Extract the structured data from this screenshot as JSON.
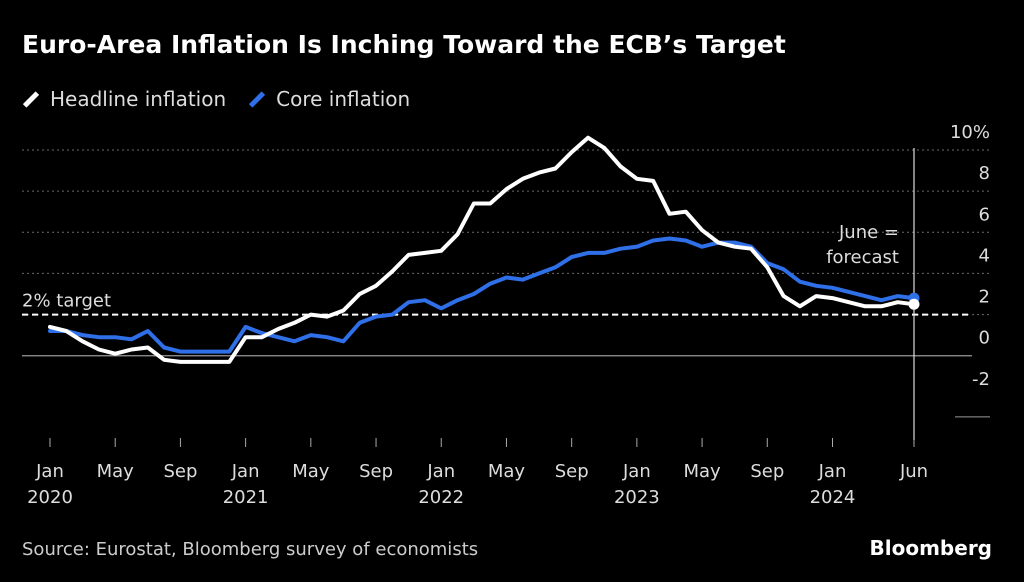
{
  "title": "Euro-Area Inflation Is Inching Toward the ECB’s Target",
  "legend": [
    {
      "label": "Headline inflation",
      "color": "#ffffff"
    },
    {
      "label": "Core inflation",
      "color": "#2f6fe8"
    }
  ],
  "source": "Source: Eurostat, Bloomberg survey of economists",
  "brand": "Bloomberg",
  "chart_data": {
    "type": "line",
    "title": "Euro-Area Inflation Is Inching Toward the ECB’s Target",
    "ylim": [
      -4,
      10
    ],
    "yticks": [
      {
        "value": 10,
        "label": "10%"
      },
      {
        "value": 8,
        "label": "8"
      },
      {
        "value": 6,
        "label": "6"
      },
      {
        "value": 4,
        "label": "4"
      },
      {
        "value": 2,
        "label": "2"
      },
      {
        "value": 0,
        "label": "0"
      },
      {
        "value": -2,
        "label": "-2"
      }
    ],
    "xticks": [
      {
        "month": "2020-01",
        "line1": "Jan",
        "line2": "2020"
      },
      {
        "month": "2020-05",
        "line1": "May",
        "line2": ""
      },
      {
        "month": "2020-09",
        "line1": "Sep",
        "line2": ""
      },
      {
        "month": "2021-01",
        "line1": "Jan",
        "line2": "2021"
      },
      {
        "month": "2021-05",
        "line1": "May",
        "line2": ""
      },
      {
        "month": "2021-09",
        "line1": "Sep",
        "line2": ""
      },
      {
        "month": "2022-01",
        "line1": "Jan",
        "line2": "2022"
      },
      {
        "month": "2022-05",
        "line1": "May",
        "line2": ""
      },
      {
        "month": "2022-09",
        "line1": "Sep",
        "line2": ""
      },
      {
        "month": "2023-01",
        "line1": "Jan",
        "line2": "2023"
      },
      {
        "month": "2023-05",
        "line1": "May",
        "line2": ""
      },
      {
        "month": "2023-09",
        "line1": "Sep",
        "line2": ""
      },
      {
        "month": "2024-01",
        "line1": "Jan",
        "line2": "2024"
      },
      {
        "month": "2024-06",
        "line1": "Jun",
        "line2": ""
      }
    ],
    "x": [
      "2020-01",
      "2020-02",
      "2020-03",
      "2020-04",
      "2020-05",
      "2020-06",
      "2020-07",
      "2020-08",
      "2020-09",
      "2020-10",
      "2020-11",
      "2020-12",
      "2021-01",
      "2021-02",
      "2021-03",
      "2021-04",
      "2021-05",
      "2021-06",
      "2021-07",
      "2021-08",
      "2021-09",
      "2021-10",
      "2021-11",
      "2021-12",
      "2022-01",
      "2022-02",
      "2022-03",
      "2022-04",
      "2022-05",
      "2022-06",
      "2022-07",
      "2022-08",
      "2022-09",
      "2022-10",
      "2022-11",
      "2022-12",
      "2023-01",
      "2023-02",
      "2023-03",
      "2023-04",
      "2023-05",
      "2023-06",
      "2023-07",
      "2023-08",
      "2023-09",
      "2023-10",
      "2023-11",
      "2023-12",
      "2024-01",
      "2024-02",
      "2024-03",
      "2024-04",
      "2024-05",
      "2024-06"
    ],
    "series": [
      {
        "name": "Headline inflation",
        "color": "#ffffff",
        "values": [
          1.4,
          1.2,
          0.7,
          0.3,
          0.1,
          0.3,
          0.4,
          -0.2,
          -0.3,
          -0.3,
          -0.3,
          -0.3,
          0.9,
          0.9,
          1.3,
          1.6,
          2.0,
          1.9,
          2.2,
          3.0,
          3.4,
          4.1,
          4.9,
          5.0,
          5.1,
          5.9,
          7.4,
          7.4,
          8.1,
          8.6,
          8.9,
          9.1,
          9.9,
          10.6,
          10.1,
          9.2,
          8.6,
          8.5,
          6.9,
          7.0,
          6.1,
          5.5,
          5.3,
          5.2,
          4.3,
          2.9,
          2.4,
          2.9,
          2.8,
          2.6,
          2.4,
          2.4,
          2.6,
          2.5
        ]
      },
      {
        "name": "Core inflation",
        "color": "#2f6fe8",
        "values": [
          1.2,
          1.2,
          1.0,
          0.9,
          0.9,
          0.8,
          1.2,
          0.4,
          0.2,
          0.2,
          0.2,
          0.2,
          1.4,
          1.1,
          0.9,
          0.7,
          1.0,
          0.9,
          0.7,
          1.6,
          1.9,
          2.0,
          2.6,
          2.7,
          2.3,
          2.7,
          3.0,
          3.5,
          3.8,
          3.7,
          4.0,
          4.3,
          4.8,
          5.0,
          5.0,
          5.2,
          5.3,
          5.6,
          5.7,
          5.6,
          5.3,
          5.5,
          5.5,
          5.3,
          4.5,
          4.2,
          3.6,
          3.4,
          3.3,
          3.1,
          2.9,
          2.7,
          2.9,
          2.8
        ]
      }
    ],
    "reference_line": {
      "value": 2,
      "label": "2% target"
    },
    "forecast": {
      "month": "2024-06",
      "label_line1": "June =",
      "label_line2": "forecast"
    }
  }
}
